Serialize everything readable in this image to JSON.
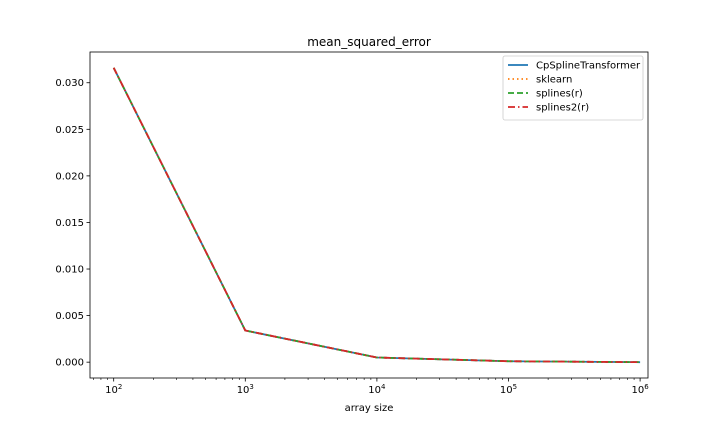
{
  "chart_data": {
    "type": "line",
    "title": "mean_squared_error",
    "xlabel": "array size",
    "ylabel": "",
    "xscale": "log",
    "x": [
      100,
      1000,
      10000,
      100000,
      1000000
    ],
    "xticks": [
      {
        "base": "10",
        "exp": "2"
      },
      {
        "base": "10",
        "exp": "3"
      },
      {
        "base": "10",
        "exp": "4"
      },
      {
        "base": "10",
        "exp": "5"
      },
      {
        "base": "10",
        "exp": "6"
      }
    ],
    "yticks": [
      "0.000",
      "0.005",
      "0.010",
      "0.015",
      "0.020",
      "0.025",
      "0.030"
    ],
    "ylim": [
      -0.0017,
      0.0333
    ],
    "grid": false,
    "legend_position": "top-right",
    "series": [
      {
        "name": "CpSplineTransformer",
        "color": "#1f77b4",
        "style": "solid",
        "values": [
          0.0316,
          0.0034,
          0.0005,
          0.0001,
          0.0
        ]
      },
      {
        "name": "sklearn",
        "color": "#ff7f0e",
        "style": "dotted",
        "values": [
          0.0316,
          0.0034,
          0.0005,
          0.0001,
          0.0
        ]
      },
      {
        "name": "splines(r)",
        "color": "#2ca02c",
        "style": "dashed",
        "values": [
          0.0316,
          0.0034,
          0.0005,
          0.0001,
          0.0
        ]
      },
      {
        "name": "splines2(r)",
        "color": "#d62728",
        "style": "dashdot",
        "values": [
          0.0316,
          0.0034,
          0.0005,
          0.0001,
          0.0
        ]
      }
    ]
  }
}
